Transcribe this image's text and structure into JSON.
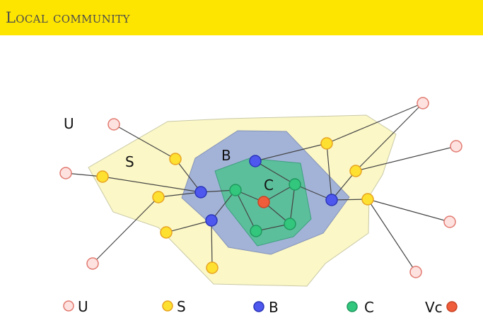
{
  "header": {
    "title": "Local community"
  },
  "diagram": {
    "region_labels": {
      "u": "U",
      "s": "S",
      "b": "B",
      "c": "C"
    },
    "colors": {
      "u_fill": "#fde2e0",
      "u_stroke": "#e27a70",
      "s_fill": "#fde030",
      "s_stroke": "#e8a320",
      "b_fill": "#4e58ee",
      "b_stroke": "#2a35b8",
      "c_fill": "#33c67d",
      "c_stroke": "#1f9a5e",
      "vc_fill": "#ef5d3a",
      "vc_stroke": "#c94425",
      "region_s": "#fbf7c6",
      "region_b": "#a3b3d8",
      "region_c": "#5cbf9c"
    }
  },
  "legend": {
    "u_label": "U",
    "s_label": "S",
    "b_label": "B",
    "c_label": "C",
    "vc_label": "Vc"
  }
}
